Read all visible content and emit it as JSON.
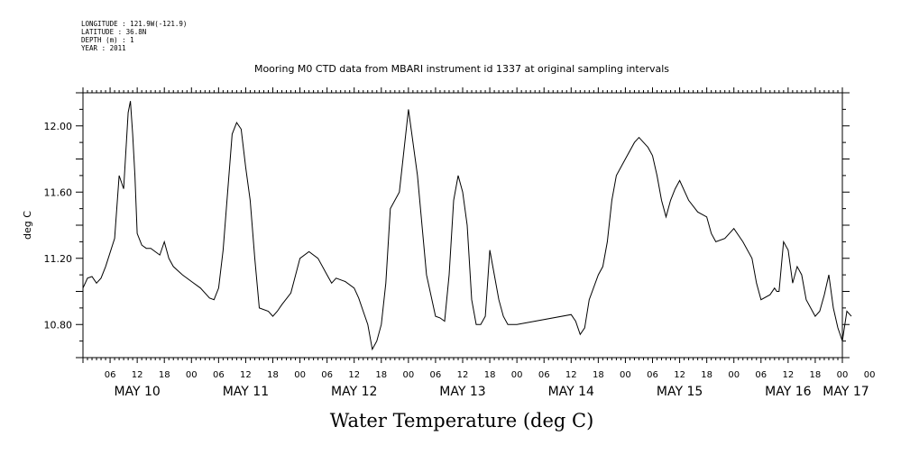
{
  "meta": {
    "longitude": "LONGITUDE : 121.9W(-121.9)",
    "latitude": "LATITUDE : 36.8N",
    "depth": "DEPTH (m) : 1",
    "year": "YEAR : 2011"
  },
  "chart_data": {
    "type": "line",
    "title": "Mooring M0 CTD data from MBARI instrument id 1337 at original sampling intervals",
    "xlabel": "Water Temperature (deg C)",
    "ylabel": "deg C",
    "xlim_hours": [
      0,
      168
    ],
    "ylim": [
      10.6,
      12.2
    ],
    "yticks": [
      "10.80",
      "11.20",
      "11.60",
      "12.00"
    ],
    "xticks": [
      "06",
      "12",
      "18",
      "00",
      "06",
      "12",
      "18",
      "00",
      "06",
      "12",
      "18",
      "00",
      "06",
      "12",
      "18",
      "00",
      "06",
      "12",
      "18",
      "00",
      "06",
      "12",
      "18",
      "00",
      "06",
      "12",
      "18",
      "00",
      "00"
    ],
    "day_labels": [
      "MAY 10",
      "MAY 11",
      "MAY 12",
      "MAY 13",
      "MAY 14",
      "MAY 15",
      "MAY 16",
      "MAY 17"
    ],
    "series": [
      {
        "x": [
          "May 10 00:00",
          "May 10 01:00",
          "May 10 02:00",
          "May 10 03:00",
          "May 10 04:00",
          "May 10 05:00",
          "May 10 07:00",
          "May 10 08:00",
          "May 10 09:00",
          "May 10 10:00",
          "May 10 10:30",
          "May 10 11:00",
          "May 10 11:30",
          "May 10 12:00",
          "May 10 13:00",
          "May 10 14:00",
          "May 10 15:00",
          "May 10 17:00",
          "May 10 18:00",
          "May 10 19:00",
          "May 10 20:00",
          "May 10 22:00",
          "May 11 00:00",
          "May 11 02:00",
          "May 11 04:00",
          "May 11 05:00",
          "May 11 06:00",
          "May 11 07:00",
          "May 11 08:00",
          "May 11 09:00",
          "May 11 10:00",
          "May 11 11:00",
          "May 11 12:00",
          "May 11 13:00",
          "May 11 14:00",
          "May 11 15:00",
          "May 11 17:00",
          "May 11 18:00",
          "May 11 19:00",
          "May 11 20:00",
          "May 11 22:00",
          "May 12 00:00",
          "May 12 02:00",
          "May 12 04:00",
          "May 12 06:00",
          "May 12 07:00",
          "May 12 08:00",
          "May 12 10:00",
          "May 12 12:00",
          "May 12 13:00",
          "May 12 14:00",
          "May 12 15:00",
          "May 12 16:00",
          "May 12 17:00",
          "May 12 18:00",
          "May 12 19:00",
          "May 12 20:00",
          "May 12 22:00",
          "May 13 00:00",
          "May 13 02:00",
          "May 13 04:00",
          "May 13 06:00",
          "May 13 07:00",
          "May 13 08:00",
          "May 13 09:00",
          "May 13 10:00",
          "May 13 11:00",
          "May 13 12:00",
          "May 13 13:00",
          "May 13 14:00",
          "May 13 15:00",
          "May 13 16:00",
          "May 13 17:00",
          "May 13 18:00",
          "May 13 19:00",
          "May 13 20:00",
          "May 13 21:00",
          "May 13 22:00",
          "May 14 00:00",
          "May 14 12:00",
          "May 14 13:00",
          "May 14 14:00",
          "May 14 15:00",
          "May 14 16:00",
          "May 14 18:00",
          "May 14 19:00",
          "May 14 20:00",
          "May 14 21:00",
          "May 14 22:00",
          "May 15 00:00",
          "May 15 02:00",
          "May 15 03:00",
          "May 15 04:00",
          "May 15 05:00",
          "May 15 06:00",
          "May 15 07:00",
          "May 15 08:00",
          "May 15 09:00",
          "May 15 10:00",
          "May 15 11:00",
          "May 15 12:00",
          "May 15 14:00",
          "May 15 16:00",
          "May 15 18:00",
          "May 15 19:00",
          "May 15 20:00",
          "May 15 22:00",
          "May 16 00:00",
          "May 16 02:00",
          "May 16 04:00",
          "May 16 05:00",
          "May 16 06:00",
          "May 16 08:00",
          "May 16 09:00",
          "May 16 09:30",
          "May 16 10:00",
          "May 16 11:00",
          "May 16 12:00",
          "May 16 13:00",
          "May 16 14:00",
          "May 16 15:00",
          "May 16 16:00",
          "May 16 18:00",
          "May 16 19:00",
          "May 16 20:00",
          "May 16 21:00",
          "May 16 22:00",
          "May 16 23:00",
          "May 17 00:00",
          "May 17 01:00",
          "May 17 02:00"
        ],
        "values": [
          11.02,
          11.08,
          11.09,
          11.05,
          11.08,
          11.15,
          11.32,
          11.7,
          11.62,
          12.08,
          12.15,
          11.95,
          11.7,
          11.35,
          11.28,
          11.26,
          11.26,
          11.22,
          11.3,
          11.2,
          11.15,
          11.1,
          11.06,
          11.02,
          10.96,
          10.95,
          11.02,
          11.25,
          11.6,
          11.95,
          12.02,
          11.98,
          11.75,
          11.55,
          11.2,
          10.9,
          10.88,
          10.85,
          10.88,
          10.92,
          10.99,
          11.2,
          11.24,
          11.2,
          11.1,
          11.05,
          11.08,
          11.06,
          11.02,
          10.96,
          10.88,
          10.8,
          10.65,
          10.7,
          10.8,
          11.05,
          11.5,
          11.6,
          12.1,
          11.7,
          11.1,
          10.85,
          10.84,
          10.82,
          11.1,
          11.55,
          11.7,
          11.6,
          11.4,
          10.95,
          10.8,
          10.8,
          10.85,
          11.25,
          11.1,
          10.95,
          10.85,
          10.8,
          10.8,
          10.86,
          10.82,
          10.74,
          10.78,
          10.95,
          11.1,
          11.15,
          11.3,
          11.55,
          11.7,
          11.8,
          11.9,
          11.93,
          11.9,
          11.87,
          11.82,
          11.7,
          11.55,
          11.45,
          11.55,
          11.62,
          11.67,
          11.55,
          11.48,
          11.45,
          11.35,
          11.3,
          11.32,
          11.38,
          11.3,
          11.2,
          11.05,
          10.95,
          10.98,
          11.02,
          11.0,
          11.0,
          11.3,
          11.25,
          11.05,
          11.15,
          11.1,
          10.95,
          10.85,
          10.88,
          10.98,
          11.1,
          10.9,
          10.78,
          10.7,
          10.88,
          10.85
        ]
      }
    ]
  }
}
